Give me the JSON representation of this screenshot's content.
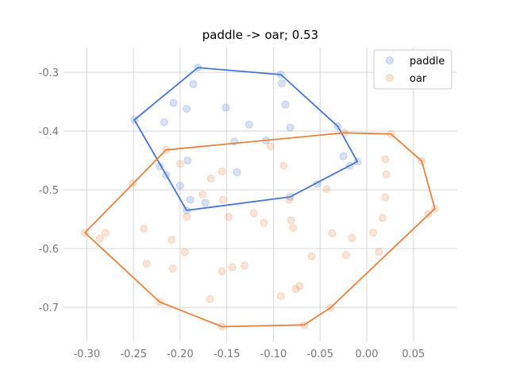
{
  "chart_data": {
    "type": "scatter",
    "title": "paddle -> oar; 0.53",
    "xlabel": "",
    "ylabel": "",
    "xlim": [
      -0.325,
      0.097
    ],
    "ylim": [
      -0.758,
      -0.258
    ],
    "x_ticks": [
      "-0.30",
      "-0.25",
      "-0.20",
      "-0.15",
      "-0.10",
      "-0.05",
      "0.00",
      "0.05"
    ],
    "x_tick_values": [
      -0.3,
      -0.25,
      -0.2,
      -0.15,
      -0.1,
      -0.05,
      0.0,
      0.05
    ],
    "y_ticks": [
      "-0.3",
      "-0.4",
      "-0.5",
      "-0.6",
      "-0.7"
    ],
    "y_tick_values": [
      -0.3,
      -0.4,
      -0.5,
      -0.6,
      -0.7
    ],
    "grid": true,
    "legend_position": "top-right",
    "series": [
      {
        "name": "paddle",
        "color": "#4575d0",
        "points": [
          [
            -0.181,
            -0.292
          ],
          [
            -0.186,
            -0.32
          ],
          [
            -0.092,
            -0.304
          ],
          [
            -0.091,
            -0.319
          ],
          [
            -0.207,
            -0.352
          ],
          [
            -0.193,
            -0.362
          ],
          [
            -0.151,
            -0.36
          ],
          [
            -0.087,
            -0.355
          ],
          [
            -0.249,
            -0.381
          ],
          [
            -0.217,
            -0.385
          ],
          [
            -0.126,
            -0.389
          ],
          [
            -0.082,
            -0.394
          ],
          [
            -0.031,
            -0.392
          ],
          [
            -0.142,
            -0.418
          ],
          [
            -0.108,
            -0.416
          ],
          [
            -0.025,
            -0.443
          ],
          [
            -0.018,
            -0.459
          ],
          [
            -0.01,
            -0.452
          ],
          [
            -0.192,
            -0.45
          ],
          [
            -0.222,
            -0.46
          ],
          [
            -0.215,
            -0.475
          ],
          [
            -0.139,
            -0.47
          ],
          [
            -0.053,
            -0.49
          ],
          [
            -0.2,
            -0.493
          ],
          [
            -0.189,
            -0.517
          ],
          [
            -0.173,
            -0.522
          ],
          [
            -0.082,
            -0.512
          ],
          [
            -0.193,
            -0.535
          ]
        ],
        "hull": [
          [
            -0.181,
            -0.292
          ],
          [
            -0.092,
            -0.304
          ],
          [
            -0.031,
            -0.392
          ],
          [
            -0.01,
            -0.452
          ],
          [
            -0.082,
            -0.512
          ],
          [
            -0.193,
            -0.535
          ],
          [
            -0.249,
            -0.381
          ]
        ]
      },
      {
        "name": "oar",
        "color": "#e8823f",
        "points": [
          [
            -0.024,
            -0.403
          ],
          [
            0.026,
            -0.405
          ],
          [
            -0.103,
            -0.426
          ],
          [
            -0.215,
            -0.432
          ],
          [
            -0.089,
            -0.459
          ],
          [
            0.02,
            -0.448
          ],
          [
            0.059,
            -0.451
          ],
          [
            -0.2,
            -0.456
          ],
          [
            -0.155,
            -0.469
          ],
          [
            -0.167,
            -0.481
          ],
          [
            0.021,
            -0.474
          ],
          [
            -0.251,
            -0.489
          ],
          [
            -0.043,
            -0.499
          ],
          [
            -0.176,
            -0.508
          ],
          [
            -0.154,
            -0.517
          ],
          [
            -0.083,
            -0.517
          ],
          [
            0.02,
            -0.513
          ],
          [
            -0.193,
            -0.546
          ],
          [
            -0.148,
            -0.546
          ],
          [
            -0.121,
            -0.54
          ],
          [
            -0.081,
            -0.552
          ],
          [
            -0.11,
            -0.556
          ],
          [
            0.017,
            -0.548
          ],
          [
            -0.079,
            -0.565
          ],
          [
            0.066,
            -0.541
          ],
          [
            0.073,
            -0.532
          ],
          [
            -0.239,
            -0.566
          ],
          [
            -0.28,
            -0.573
          ],
          [
            -0.286,
            -0.583
          ],
          [
            -0.302,
            -0.573
          ],
          [
            -0.209,
            -0.585
          ],
          [
            -0.037,
            -0.574
          ],
          [
            -0.016,
            -0.582
          ],
          [
            0.007,
            -0.573
          ],
          [
            -0.195,
            -0.606
          ],
          [
            -0.059,
            -0.613
          ],
          [
            -0.022,
            -0.611
          ],
          [
            0.013,
            -0.606
          ],
          [
            -0.236,
            -0.626
          ],
          [
            -0.208,
            -0.634
          ],
          [
            -0.144,
            -0.632
          ],
          [
            -0.131,
            -0.629
          ],
          [
            -0.155,
            -0.639
          ],
          [
            -0.072,
            -0.664
          ],
          [
            -0.076,
            -0.669
          ],
          [
            -0.092,
            -0.681
          ],
          [
            -0.168,
            -0.686
          ],
          [
            -0.222,
            -0.691
          ],
          [
            -0.039,
            -0.701
          ],
          [
            -0.155,
            -0.733
          ],
          [
            -0.067,
            -0.73
          ]
        ],
        "hull": [
          [
            -0.302,
            -0.573
          ],
          [
            -0.215,
            -0.432
          ],
          [
            -0.024,
            -0.403
          ],
          [
            0.026,
            -0.405
          ],
          [
            0.059,
            -0.451
          ],
          [
            0.073,
            -0.532
          ],
          [
            -0.039,
            -0.701
          ],
          [
            -0.067,
            -0.73
          ],
          [
            -0.155,
            -0.733
          ],
          [
            -0.222,
            -0.691
          ]
        ]
      }
    ]
  }
}
